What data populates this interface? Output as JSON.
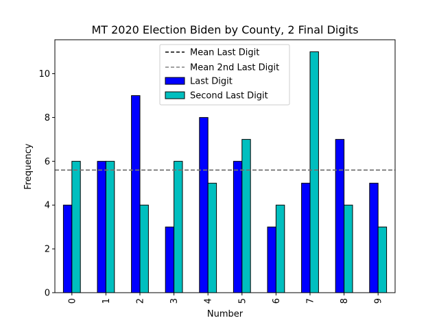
{
  "chart_data": {
    "type": "bar",
    "title": "MT 2020 Election Biden by County, 2 Final Digits",
    "xlabel": "Number",
    "ylabel": "Frequency",
    "categories": [
      "0",
      "1",
      "2",
      "3",
      "4",
      "5",
      "6",
      "7",
      "8",
      "9"
    ],
    "ylim": [
      0,
      11.55
    ],
    "yticks": [
      "0",
      "2",
      "4",
      "6",
      "8",
      "10"
    ],
    "grid": false,
    "legend_position": "top-center",
    "series": [
      {
        "name": "Last Digit",
        "values": [
          4,
          6,
          9,
          3,
          8,
          6,
          3,
          5,
          7,
          5
        ],
        "color": "#0000ff"
      },
      {
        "name": "Second Last Digit",
        "values": [
          6,
          6,
          4,
          6,
          5,
          7,
          4,
          11,
          4,
          3
        ],
        "color": "#00bfbf"
      }
    ],
    "reference_lines": [
      {
        "name": "Mean Last Digit",
        "value": 5.6,
        "style": "dashed",
        "color": "#000000"
      },
      {
        "name": "Mean 2nd Last Digit",
        "value": 5.6,
        "style": "dashed",
        "color": "#808080"
      }
    ]
  }
}
